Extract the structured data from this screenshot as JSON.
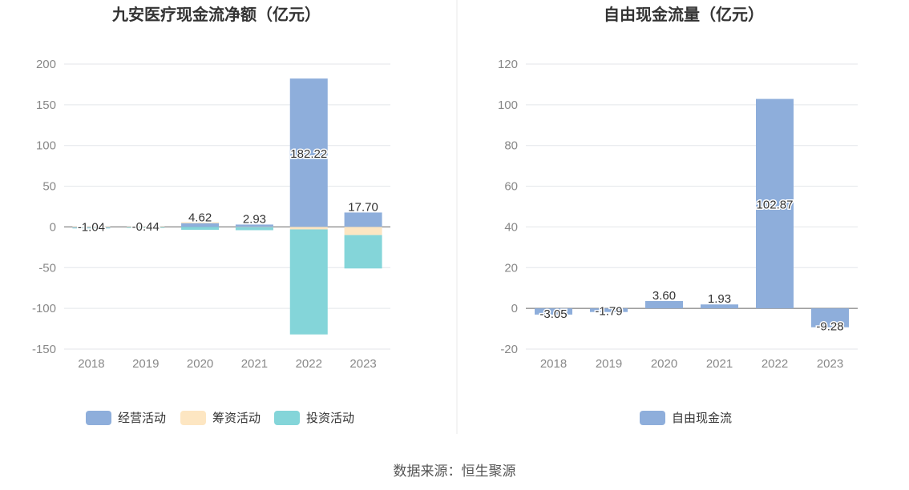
{
  "source_text": "数据来源：恒生聚源",
  "chart_data": [
    {
      "type": "bar",
      "stacked": true,
      "title": "九安医疗现金流净额（亿元）",
      "categories": [
        "2018",
        "2019",
        "2020",
        "2021",
        "2022",
        "2023"
      ],
      "ylim": [
        -150,
        200
      ],
      "yticks": [
        200,
        150,
        100,
        50,
        0,
        -50,
        -100,
        -150
      ],
      "grid": true,
      "legend_position": "bottom",
      "series": [
        {
          "name": "经营活动",
          "color": "#8eaedb",
          "values": [
            -1.04,
            -0.44,
            4.62,
            2.93,
            182.22,
            17.7
          ]
        },
        {
          "name": "筹资活动",
          "color": "#fde6c2",
          "values": [
            0.3,
            0.1,
            1.2,
            -0.3,
            -3.0,
            -10.0
          ]
        },
        {
          "name": "投资活动",
          "color": "#84d5d9",
          "values": [
            -0.5,
            -0.2,
            -3.5,
            -3.7,
            -129.0,
            -41.0
          ]
        }
      ],
      "data_labels": [
        "-1.04",
        "-0.44",
        "4.62",
        "2.93",
        "182.22",
        "17.70"
      ]
    },
    {
      "type": "bar",
      "title": "自由现金流量（亿元）",
      "categories": [
        "2018",
        "2019",
        "2020",
        "2021",
        "2022",
        "2023"
      ],
      "ylim": [
        -20,
        120
      ],
      "yticks": [
        120,
        100,
        80,
        60,
        40,
        20,
        0,
        -20
      ],
      "grid": true,
      "legend_position": "bottom",
      "series": [
        {
          "name": "自由现金流",
          "color": "#8eaedb",
          "values": [
            -3.05,
            -1.79,
            3.6,
            1.93,
            102.87,
            -9.28
          ]
        }
      ],
      "data_labels": [
        "-3.05",
        "-1.79",
        "3.60",
        "1.93",
        "102.87",
        "-9.28"
      ]
    }
  ]
}
